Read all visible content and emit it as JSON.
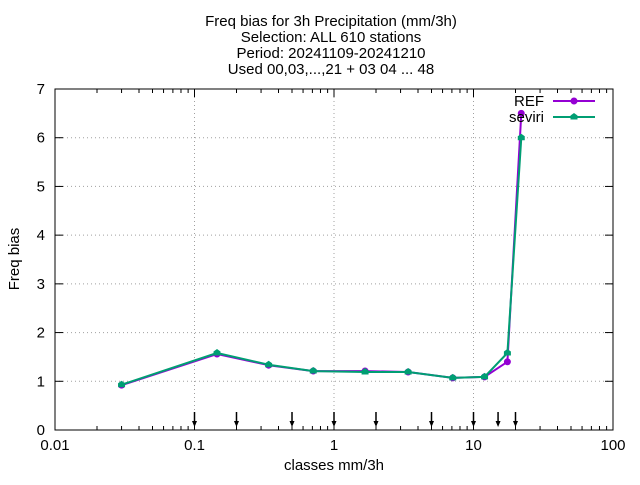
{
  "chart_data": {
    "type": "line",
    "title_lines": [
      "Freq bias  for 3h Precipitation (mm/3h)",
      "Selection: ALL    610 stations",
      "Period: 20241109-20241210",
      "Used 00,03,...,21 + 03 04  ... 48"
    ],
    "xlabel": "classes mm/3h",
    "ylabel": "Freq bias",
    "x_scale": "log",
    "xlim": [
      0.01,
      100
    ],
    "ylim": [
      0,
      7
    ],
    "x_ticks": [
      0.01,
      0.1,
      1,
      10,
      100
    ],
    "x_tick_labels": [
      "0.01",
      "0.1",
      "1",
      "10",
      "100"
    ],
    "y_ticks": [
      0,
      1,
      2,
      3,
      4,
      5,
      6,
      7
    ],
    "y_tick_labels": [
      "0",
      "1",
      "2",
      "3",
      "4",
      "5",
      "6",
      "7"
    ],
    "grid": true,
    "legend_position": "top-right",
    "class_limit_arrows": [
      0.1,
      0.2,
      0.5,
      1,
      2,
      5,
      10,
      15,
      20
    ],
    "series": [
      {
        "name": "REF",
        "color": "#9400d3",
        "x": [
          0.03,
          0.145,
          0.34,
          0.71,
          1.67,
          3.4,
          7.1,
          12.0,
          17.5,
          22.0
        ],
        "values": [
          0.92,
          1.56,
          1.33,
          1.21,
          1.21,
          1.19,
          1.07,
          1.09,
          1.4,
          6.5
        ]
      },
      {
        "name": "seviri",
        "color": "#009e73",
        "x": [
          0.03,
          0.145,
          0.34,
          0.71,
          1.67,
          3.4,
          7.1,
          12.0,
          17.5,
          22.0
        ],
        "values": [
          0.93,
          1.58,
          1.34,
          1.21,
          1.19,
          1.19,
          1.07,
          1.09,
          1.58,
          6.0
        ]
      }
    ]
  }
}
